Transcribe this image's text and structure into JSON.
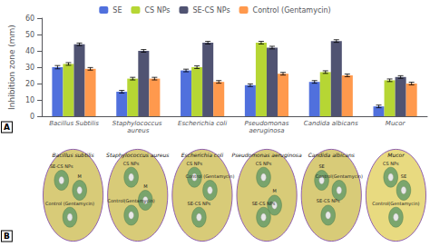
{
  "chart_data": {
    "type": "bar",
    "categories": [
      "Bacillus Subtilis",
      "Staphylococcus aureus",
      "Escherichia coli",
      "Pseudomonas\naeruginosa",
      "Candida albicans",
      "Mucor"
    ],
    "series": [
      {
        "name": "SE",
        "values": [
          30,
          15,
          28,
          19,
          21,
          6
        ],
        "errors": [
          1.0,
          0.8,
          0.8,
          0.8,
          0.8,
          0.8
        ]
      },
      {
        "name": "CS NPs",
        "values": [
          32,
          23,
          30,
          45,
          27,
          22
        ],
        "errors": [
          0.8,
          0.8,
          0.8,
          0.8,
          0.8,
          0.8
        ]
      },
      {
        "name": "SE-CS NPs",
        "values": [
          44,
          40,
          45,
          42,
          46,
          24
        ],
        "errors": [
          0.8,
          0.8,
          0.8,
          0.8,
          0.8,
          0.8
        ]
      },
      {
        "name": "Control (Gentamycin)",
        "values": [
          29,
          23,
          21,
          26,
          25,
          20
        ],
        "errors": [
          0.8,
          0.8,
          0.8,
          0.8,
          0.8,
          0.8
        ]
      }
    ],
    "ylabel": "Inhibition zone (mm)",
    "ylim": [
      0,
      60
    ],
    "yticks": [
      0,
      10,
      20,
      30,
      40,
      50,
      60
    ],
    "grid": false,
    "legend": "top",
    "annotations": [
      "A",
      "B"
    ],
    "dishes": [
      {
        "label": "Bacillus subtilis",
        "spots": [
          "SE-CS NPs",
          "M",
          "Control (Gentamycin)"
        ]
      },
      {
        "label": "Staphylococcus aureus",
        "spots": [
          "CS NPs",
          "M",
          "Control(Gentamycin)"
        ]
      },
      {
        "label": "Escherichia coli",
        "spots": [
          "CS NPs",
          "Control (Gentamycin)",
          "SE-CS NPs"
        ]
      },
      {
        "label": "Pseudomonas aeruginosa",
        "spots": [
          "CS NPs",
          "M",
          "SE-CS NPs"
        ]
      },
      {
        "label": "Candida albicans",
        "spots": [
          "SE",
          "Control(Gentamycin)",
          "SE-CS NPs"
        ]
      },
      {
        "label": "Mucor",
        "spots": [
          "CS NPs",
          "SE",
          "Control(Gentamycin)"
        ]
      }
    ]
  }
}
